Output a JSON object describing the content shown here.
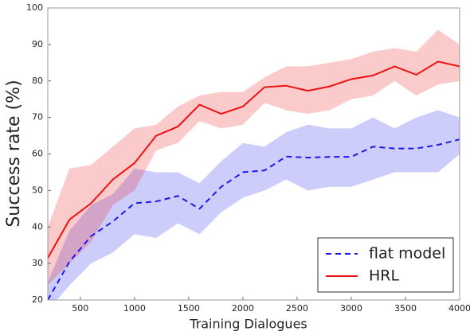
{
  "chart_data": {
    "type": "line",
    "xlabel": "Training Dialogues",
    "ylabel": "Success rate (%)",
    "x": [
      200,
      400,
      600,
      800,
      1000,
      1200,
      1400,
      1600,
      1800,
      2000,
      2200,
      2400,
      2600,
      2800,
      3000,
      3200,
      3400,
      3600,
      3800,
      4000
    ],
    "series": [
      {
        "name": "flat model",
        "color": "#1a1aee",
        "dash": true,
        "values": [
          20,
          30.5,
          37.5,
          41.5,
          46.5,
          47,
          48.5,
          45,
          51,
          55,
          55.5,
          59.3,
          59,
          59.2,
          59.2,
          62,
          61.5,
          61.5,
          62.5,
          64
        ],
        "upper": [
          25,
          39,
          46,
          49,
          56,
          55,
          55,
          52,
          58,
          63,
          62,
          66,
          68,
          67,
          67,
          70,
          67,
          70,
          72,
          70
        ],
        "lower": [
          17,
          24,
          30,
          33,
          38,
          37,
          41,
          38,
          44,
          48,
          50,
          53,
          50,
          51,
          51,
          53,
          55,
          55,
          55,
          60
        ]
      },
      {
        "name": "HRL",
        "color": "#ee1111",
        "dash": false,
        "values": [
          31.5,
          42,
          46.5,
          53,
          57.5,
          65,
          67.5,
          73.5,
          71,
          73,
          78.3,
          78.7,
          77.3,
          78.5,
          80.5,
          81.5,
          84,
          81.7,
          85.3,
          84
        ],
        "upper": [
          40,
          56,
          57,
          62,
          67,
          68,
          73,
          76,
          77,
          77,
          81,
          84,
          84,
          85,
          86,
          88,
          89,
          88,
          94,
          90
        ],
        "lower": [
          24,
          30,
          36,
          46,
          50,
          61,
          63,
          69,
          67,
          68,
          74,
          72,
          71,
          72,
          75,
          76,
          80,
          76,
          79,
          80
        ]
      }
    ],
    "xlim": [
      200,
      4000
    ],
    "xticks": [
      500,
      1000,
      1500,
      2000,
      2500,
      3000,
      3500,
      4000
    ],
    "ylim": [
      20,
      100
    ],
    "yticks": [
      20,
      30,
      40,
      50,
      60,
      70,
      80,
      90,
      100
    ],
    "grid": false,
    "legend": "lower right"
  }
}
